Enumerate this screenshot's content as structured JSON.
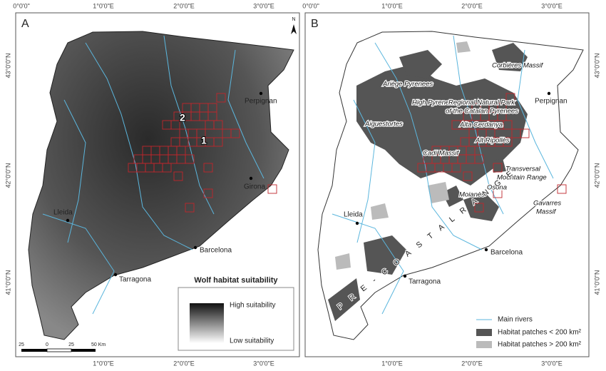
{
  "panels": [
    {
      "label": "A",
      "top_ticks": [
        "0°0'0\"",
        "1°0'0\"E",
        "2°0'0\"E",
        "3°0'0\"E"
      ],
      "bottom_ticks": [
        "1°0'0\"E",
        "2°0'0\"E",
        "3°0'0\"E"
      ],
      "side_ticks": [
        "43°0'0\"N",
        "42°0'0\"N",
        "41°0'0\"N"
      ],
      "north": "N",
      "places": [
        "Perpignan",
        "Girona",
        "Lleida",
        "Barcelona",
        "Tarragona"
      ],
      "numbers": [
        "1",
        "2"
      ],
      "legend": {
        "title": "Wolf habitat suitability",
        "high": "High suitability",
        "low": "Low suitability"
      },
      "scale": [
        "25",
        "0",
        "25",
        "50 Km"
      ]
    },
    {
      "label": "B",
      "top_ticks": [
        "0°0'0\"",
        "1°0'0\"E",
        "2°0'0\"E",
        "3°0'0\"E"
      ],
      "bottom_ticks": [
        "1°0'0\"E",
        "2°0'0\"E",
        "3°0'0\"E"
      ],
      "side_ticks": [
        "43°0'0\"N",
        "42°0'0\"N",
        "41°0'0\"N"
      ],
      "places": [
        "Perpignan",
        "Lleida",
        "Barcelona",
        "Tarragona"
      ],
      "regions": [
        "Corbières Massif",
        "Ariège Pyrenees",
        "High Pyrenees",
        "Regional Natural Park",
        "of the Catalan Pyrenees",
        "Aiguestortes",
        "Alta Cerdanya",
        "Alt Ripollès",
        "Cadí Massif",
        "Transversal",
        "Mountain Range",
        "Osona",
        "Moianès",
        "Gavarres",
        "Massif",
        "P R E - C O A S T A L   R A N G E"
      ],
      "legend": [
        "Main rivers",
        "Habitat patches < 200 km²",
        "Habitat patches > 200 km²"
      ]
    }
  ]
}
